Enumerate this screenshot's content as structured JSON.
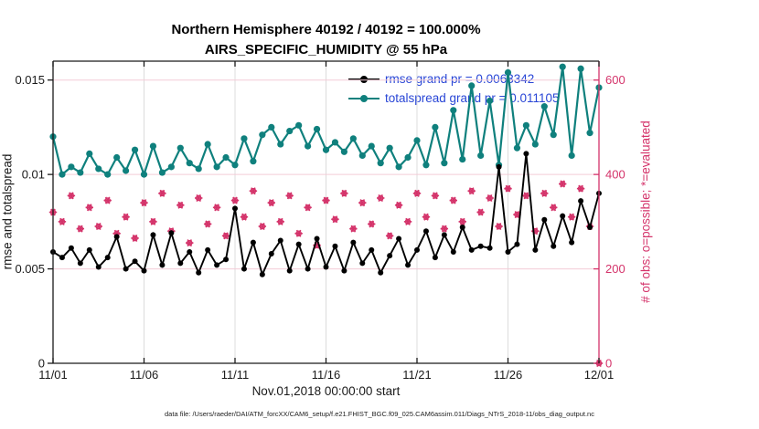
{
  "title": {
    "line1": "Northern Hemisphere 40192 / 40192 = 100.000%",
    "line2": "AIRS_SPECIFIC_HUMIDITY @ 55 hPa"
  },
  "legend": {
    "text_color": "#2946d6",
    "items": [
      {
        "name": "rmse",
        "text": "rmse grand pr = 0.0063342",
        "color": "#000000"
      },
      {
        "name": "totalspread",
        "text": "totalspread grand pr = 0.011105",
        "color": "#0f807d"
      }
    ]
  },
  "axes": {
    "x": {
      "label": "Nov.01,2018 00:00:00 start",
      "tick_labels": [
        "11/01",
        "11/06",
        "11/11",
        "11/16",
        "11/21",
        "11/26",
        "12/01"
      ],
      "tick_positions": [
        0,
        10,
        20,
        30,
        40,
        50,
        60
      ],
      "range": [
        0,
        60
      ],
      "color": "#1a1a1a"
    },
    "y_left": {
      "label": "rmse and totalspread",
      "ticks": [
        0,
        0.005,
        0.01,
        0.015
      ],
      "tick_labels": [
        "0",
        "0.005",
        "0.01",
        "0.015"
      ],
      "range": [
        0,
        0.016
      ],
      "color": "#1a1a1a"
    },
    "y_right": {
      "label": "# of obs: o=possible; *=evaluated",
      "ticks": [
        0,
        200,
        400,
        600
      ],
      "tick_labels": [
        "0",
        "200",
        "400",
        "600"
      ],
      "range": [
        0,
        640
      ],
      "color": "#d4336a"
    }
  },
  "footer": {
    "text": "data file: /Users/raeder/DAI/ATM_forcXX/CAM6_setup/f.e21.FHIST_BGC.f09_025.CAM6assim.011/Diags_NTrS_2018-11/obs_diag_output.nc"
  },
  "chart_data": {
    "type": "line",
    "title": "Northern Hemisphere 40192 / 40192 = 100.000% — AIRS_SPECIFIC_HUMIDITY @ 55 hPa",
    "xlabel": "Nov.01,2018 00:00:00 start",
    "x_description": "61 bins, 12-hour spacing, 11/01 00Z through 12/01 00Z; index 0..60",
    "x_tick_labels": [
      "11/01",
      "11/06",
      "11/11",
      "11/16",
      "11/21",
      "11/26",
      "12/01"
    ],
    "ylim_left": [
      0,
      0.016
    ],
    "ylim_right": [
      0,
      640
    ],
    "grid": true,
    "legend_position": "top-center-inside",
    "series": [
      {
        "name": "rmse",
        "axis": "left",
        "color": "#000000",
        "marker": "filled-circle",
        "grand_mean": 0.0063342,
        "values": [
          0.0059,
          0.0056,
          0.0061,
          0.0053,
          0.006,
          0.0051,
          0.0056,
          0.0067,
          0.005,
          0.0054,
          0.0049,
          0.0068,
          0.0052,
          0.0069,
          0.0053,
          0.0059,
          0.0048,
          0.006,
          0.0052,
          0.0055,
          0.0082,
          0.005,
          0.0064,
          0.0047,
          0.0058,
          0.0065,
          0.0049,
          0.0063,
          0.005,
          0.0066,
          0.0051,
          0.0062,
          0.0049,
          0.0064,
          0.0053,
          0.006,
          0.0048,
          0.0057,
          0.0066,
          0.0052,
          0.006,
          0.007,
          0.0056,
          0.0068,
          0.0059,
          0.0072,
          0.006,
          0.0062,
          0.0061,
          0.0104,
          0.0059,
          0.0063,
          0.0111,
          0.006,
          0.0076,
          0.0062,
          0.0078,
          0.0064,
          0.0086,
          0.0072,
          0.009
        ]
      },
      {
        "name": "totalspread",
        "axis": "left",
        "color": "#0f807d",
        "marker": "filled-circle",
        "grand_mean": 0.011105,
        "values": [
          0.012,
          0.01,
          0.0104,
          0.0101,
          0.0111,
          0.0103,
          0.01,
          0.0109,
          0.0102,
          0.0113,
          0.01,
          0.0115,
          0.0101,
          0.0104,
          0.0114,
          0.0106,
          0.0103,
          0.0116,
          0.0104,
          0.0109,
          0.0105,
          0.0119,
          0.0107,
          0.0121,
          0.0125,
          0.0116,
          0.0123,
          0.0126,
          0.0115,
          0.0124,
          0.0113,
          0.0117,
          0.0112,
          0.0119,
          0.011,
          0.0115,
          0.0106,
          0.0114,
          0.0104,
          0.0109,
          0.0118,
          0.0105,
          0.0125,
          0.0106,
          0.0134,
          0.0108,
          0.0147,
          0.011,
          0.0139,
          0.0105,
          0.0154,
          0.0114,
          0.0126,
          0.0116,
          0.0136,
          0.0121,
          0.0157,
          0.011,
          0.0156,
          0.0122,
          0.0146
        ]
      },
      {
        "name": "num_obs_possible_and_evaluated",
        "axis": "right",
        "color": "#d4336a",
        "marker": "circle-asterisk",
        "values": [
          320,
          300,
          355,
          285,
          330,
          290,
          345,
          275,
          310,
          265,
          340,
          300,
          360,
          280,
          335,
          255,
          350,
          295,
          330,
          270,
          345,
          310,
          365,
          290,
          340,
          300,
          355,
          275,
          330,
          250,
          345,
          305,
          360,
          285,
          340,
          295,
          350,
          270,
          335,
          300,
          360,
          310,
          355,
          285,
          345,
          300,
          365,
          320,
          350,
          290,
          370,
          315,
          355,
          280,
          360,
          330,
          380,
          310,
          370,
          290,
          0
        ]
      }
    ]
  }
}
